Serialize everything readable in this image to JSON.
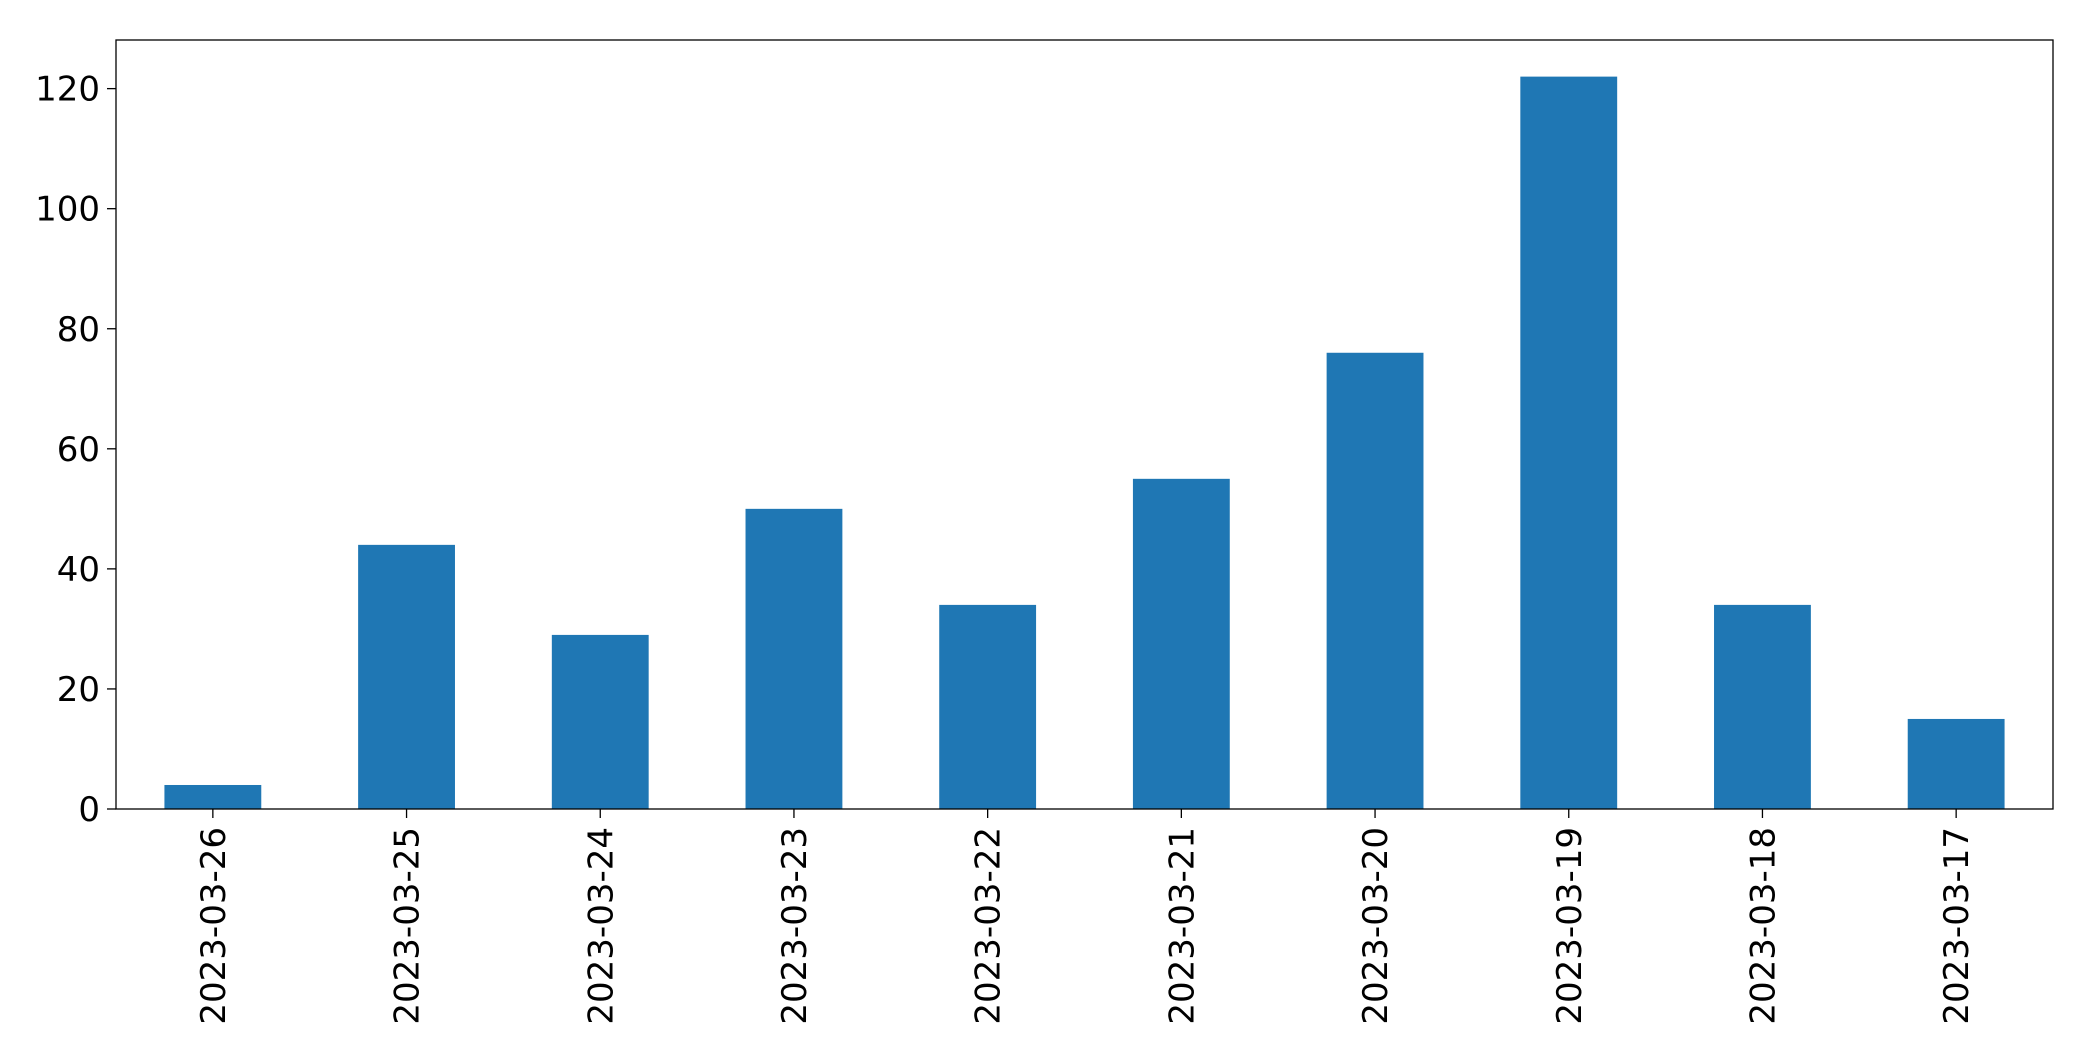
{
  "chart_data": {
    "type": "bar",
    "categories": [
      "2023-03-26",
      "2023-03-25",
      "2023-03-24",
      "2023-03-23",
      "2023-03-22",
      "2023-03-21",
      "2023-03-20",
      "2023-03-19",
      "2023-03-18",
      "2023-03-17"
    ],
    "values": [
      4,
      44,
      29,
      50,
      34,
      55,
      76,
      122,
      34,
      15
    ],
    "color": "#1f77b4",
    "ylim": [
      0,
      128.1
    ],
    "yticks": [
      0,
      20,
      40,
      60,
      80,
      100,
      120
    ],
    "grid": false
  }
}
